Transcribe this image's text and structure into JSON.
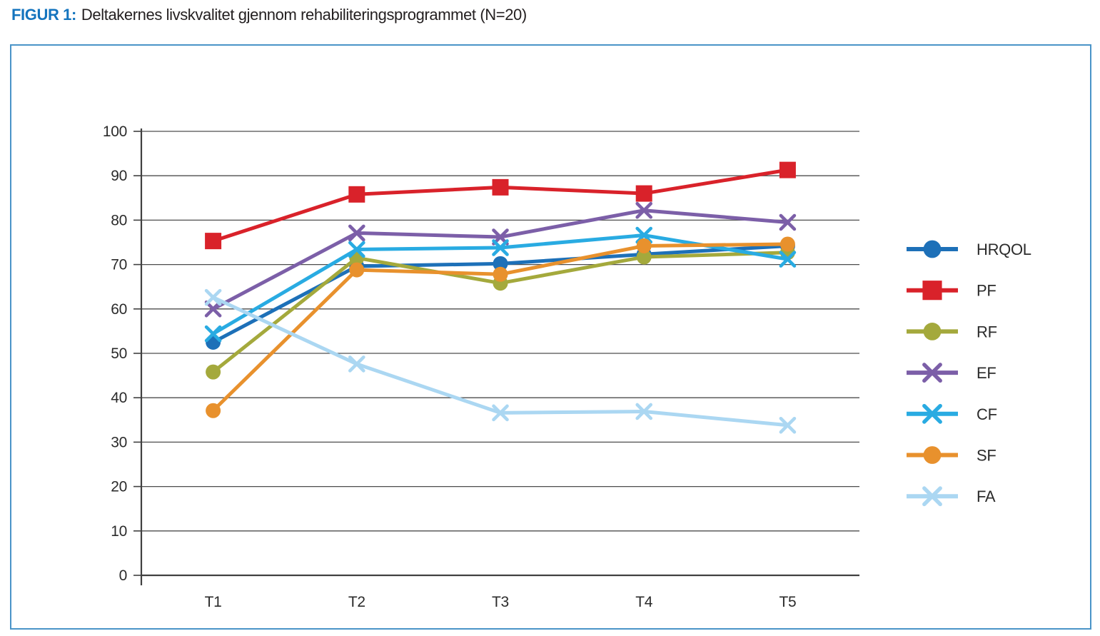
{
  "figure": {
    "label": "FIGUR 1:",
    "title": "Deltakernes livskvalitet gjennom rehabiliteringsprogrammet (N=20)"
  },
  "chart_data": {
    "type": "line",
    "categories": [
      "T1",
      "T2",
      "T3",
      "T4",
      "T5"
    ],
    "series": [
      {
        "name": "HRQOL",
        "marker": "circle",
        "color": "#1d70b8",
        "values": [
          52.5,
          69.6,
          70.2,
          72.3,
          74.2
        ]
      },
      {
        "name": "PF",
        "marker": "square",
        "color": "#d9222a",
        "values": [
          75.3,
          85.8,
          87.4,
          86.0,
          91.3
        ]
      },
      {
        "name": "RF",
        "marker": "circle",
        "color": "#a4a93c",
        "values": [
          45.8,
          71.5,
          65.8,
          71.7,
          72.7
        ]
      },
      {
        "name": "EF",
        "marker": "x",
        "color": "#7c5fa8",
        "values": [
          60.0,
          77.1,
          76.2,
          82.2,
          79.5
        ]
      },
      {
        "name": "CF",
        "marker": "x",
        "color": "#29abe2",
        "values": [
          54.4,
          73.4,
          73.8,
          76.6,
          71.2
        ]
      },
      {
        "name": "SF",
        "marker": "circle",
        "color": "#e8912d",
        "values": [
          37.1,
          68.8,
          67.8,
          74.2,
          74.6
        ]
      },
      {
        "name": "FA",
        "marker": "x",
        "color": "#abd7f2",
        "values": [
          62.6,
          47.6,
          36.6,
          36.9,
          33.8
        ]
      }
    ],
    "ylim": [
      0,
      100
    ],
    "ytick_step": 10,
    "ytick_labels": [
      "0",
      "10",
      "20",
      "30",
      "40",
      "50",
      "60",
      "70",
      "80",
      "90",
      "100"
    ],
    "grid": "horizontal",
    "legend_position": "right",
    "colors": {
      "gridline": "#4d4d4d",
      "axis": "#404040",
      "panel_border": "#4a94c8",
      "title_accent": "#1474be",
      "text": "#2b2b2b"
    }
  }
}
